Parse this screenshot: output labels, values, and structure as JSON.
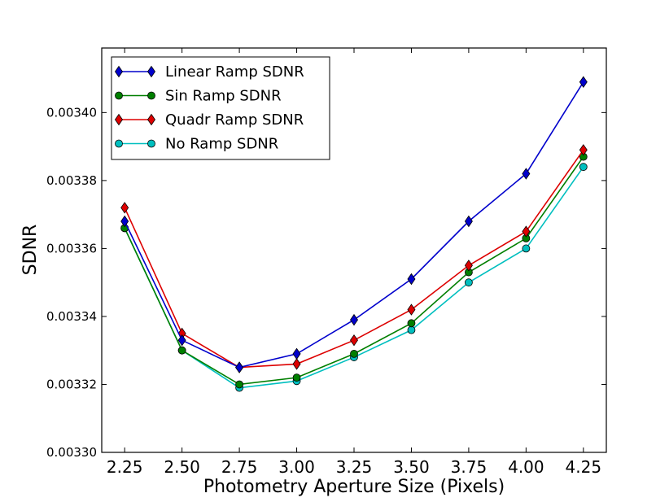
{
  "chart_data": {
    "type": "line",
    "title": "",
    "xlabel": "Photometry Aperture Size (Pixels)",
    "ylabel": "SDNR",
    "x": [
      2.25,
      2.5,
      2.75,
      3.0,
      3.25,
      3.5,
      3.75,
      4.0,
      4.25
    ],
    "x_tick_labels": [
      "2.25",
      "2.50",
      "2.75",
      "3.00",
      "3.25",
      "3.50",
      "3.75",
      "4.00",
      "4.25"
    ],
    "y_ticks": [
      0.0033,
      0.00332,
      0.00334,
      0.00336,
      0.00338,
      0.0034
    ],
    "y_tick_labels": [
      "0.00330",
      "0.00332",
      "0.00334",
      "0.00336",
      "0.00338",
      "0.00340"
    ],
    "xlim": [
      2.15,
      4.35
    ],
    "ylim": [
      0.0033,
      0.003419
    ],
    "grid": false,
    "legend_position": "top-left",
    "series": [
      {
        "name": "Linear Ramp SDNR",
        "color": "#0000cc",
        "marker": "diamond",
        "values": [
          0.003368,
          0.003333,
          0.003325,
          0.003329,
          0.003339,
          0.003351,
          0.003368,
          0.003382,
          0.003409
        ]
      },
      {
        "name": "Sin Ramp SDNR",
        "color": "#007f00",
        "marker": "circle",
        "values": [
          0.003366,
          0.00333,
          0.00332,
          0.003322,
          0.003329,
          0.003338,
          0.003353,
          0.003363,
          0.003387
        ]
      },
      {
        "name": "Quadr Ramp SDNR",
        "color": "#dd0000",
        "marker": "diamond",
        "values": [
          0.003372,
          0.003335,
          0.003325,
          0.003326,
          0.003333,
          0.003342,
          0.003355,
          0.003365,
          0.003389
        ]
      },
      {
        "name": "No Ramp SDNR",
        "color": "#00bfbf",
        "marker": "circle",
        "values": [
          0.003366,
          0.00333,
          0.003319,
          0.003321,
          0.003328,
          0.003336,
          0.00335,
          0.00336,
          0.003384
        ]
      }
    ]
  }
}
